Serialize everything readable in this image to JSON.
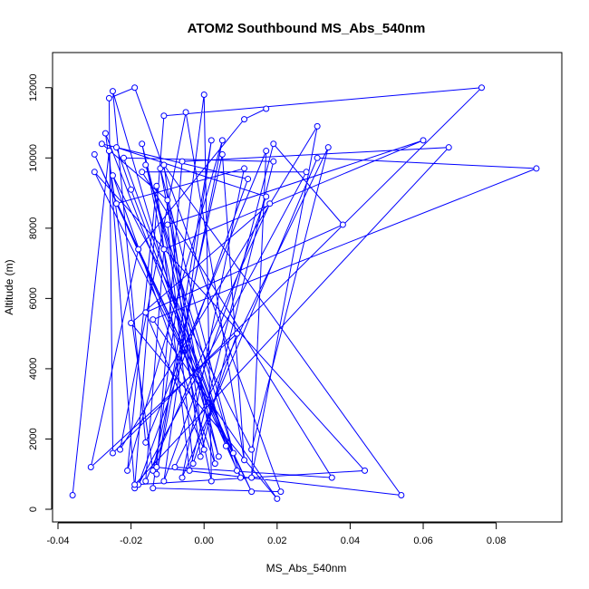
{
  "chart_data": {
    "type": "line",
    "title": "ATOM2 Southbound MS_Abs_540nm",
    "xlabel": "MS_Abs_540nm",
    "ylabel": "Altitude (m)",
    "xlim": [
      -0.04,
      0.092
    ],
    "ylim": [
      0,
      12200
    ],
    "x_ticks": [
      -0.04,
      -0.02,
      0.0,
      0.02,
      0.04,
      0.06,
      0.08
    ],
    "x_tick_labels": [
      "-0.04",
      "-0.02",
      "0.00",
      "0.02",
      "0.04",
      "0.06",
      "0.08"
    ],
    "y_ticks": [
      0,
      2000,
      4000,
      6000,
      8000,
      10000,
      12000
    ],
    "y_tick_labels": [
      "0",
      "2000",
      "4000",
      "6000",
      "8000",
      "10000",
      "12000"
    ],
    "series_color": "#0000ff",
    "marker": "open-circle",
    "grid": false,
    "legend": "none",
    "series": [
      {
        "x": [
          -0.036,
          -0.026,
          -0.019,
          -0.011,
          0.076,
          -0.025,
          -0.026,
          -0.019,
          0.021,
          -0.014,
          0.0,
          0.002,
          -0.017,
          0.004,
          -0.025,
          -0.016,
          0.017,
          0.013,
          0.031,
          -0.023,
          -0.005,
          0.011,
          0.005,
          -0.014,
          -0.027,
          0.006,
          -0.016,
          0.01,
          -0.03,
          0.008,
          -0.012,
          0.003,
          -0.025,
          0.013,
          0.034,
          -0.008,
          0.035,
          -0.017,
          0.028,
          -0.018,
          0.012,
          -0.028,
          -0.01,
          -0.001,
          0.019,
          -0.022,
          0.009,
          -0.02,
          -0.024,
          0.017,
          -0.011,
          0.002,
          -0.013,
          0.005,
          -0.021,
          -0.013,
          -0.004,
          0.019,
          0.038,
          -0.016,
          0.0,
          -0.011,
          0.054,
          -0.013,
          -0.006,
          0.067,
          -0.019,
          0.044,
          -0.03,
          0.013,
          -0.024,
          0.011,
          -0.006,
          0.031,
          0.091,
          -0.014,
          0.02,
          -0.02,
          0.018,
          -0.016,
          -0.011,
          0.06,
          -0.01,
          -0.003,
          0.009,
          -0.031,
          -0.018,
          0.011,
          0.017
        ],
        "y": [
          400,
          10200,
          600,
          11200,
          12000,
          1600,
          11700,
          12000,
          500,
          600,
          11800,
          800,
          10400,
          1500,
          11900,
          1900,
          10200,
          900,
          10900,
          1700,
          11300,
          1400,
          10100,
          1100,
          10700,
          1800,
          9800,
          900,
          10100,
          1600,
          9700,
          1300,
          9500,
          1700,
          10300,
          1200,
          900,
          9600,
          9600,
          700,
          9400,
          10400,
          8800,
          1500,
          9900,
          10000,
          1100,
          9100,
          10300,
          8900,
          800,
          10500,
          1000,
          10500,
          1100,
          9200,
          1100,
          10400,
          8100,
          5600,
          1700,
          9800,
          400,
          1200,
          9900,
          10300,
          700,
          1100,
          9600,
          500,
          8700,
          9700,
          900,
          10000,
          9700,
          5400,
          300,
          5300,
          8700,
          800,
          7400,
          10500,
          8100,
          1300,
          5000,
          1200,
          7400,
          11100,
          11400
        ]
      }
    ]
  }
}
